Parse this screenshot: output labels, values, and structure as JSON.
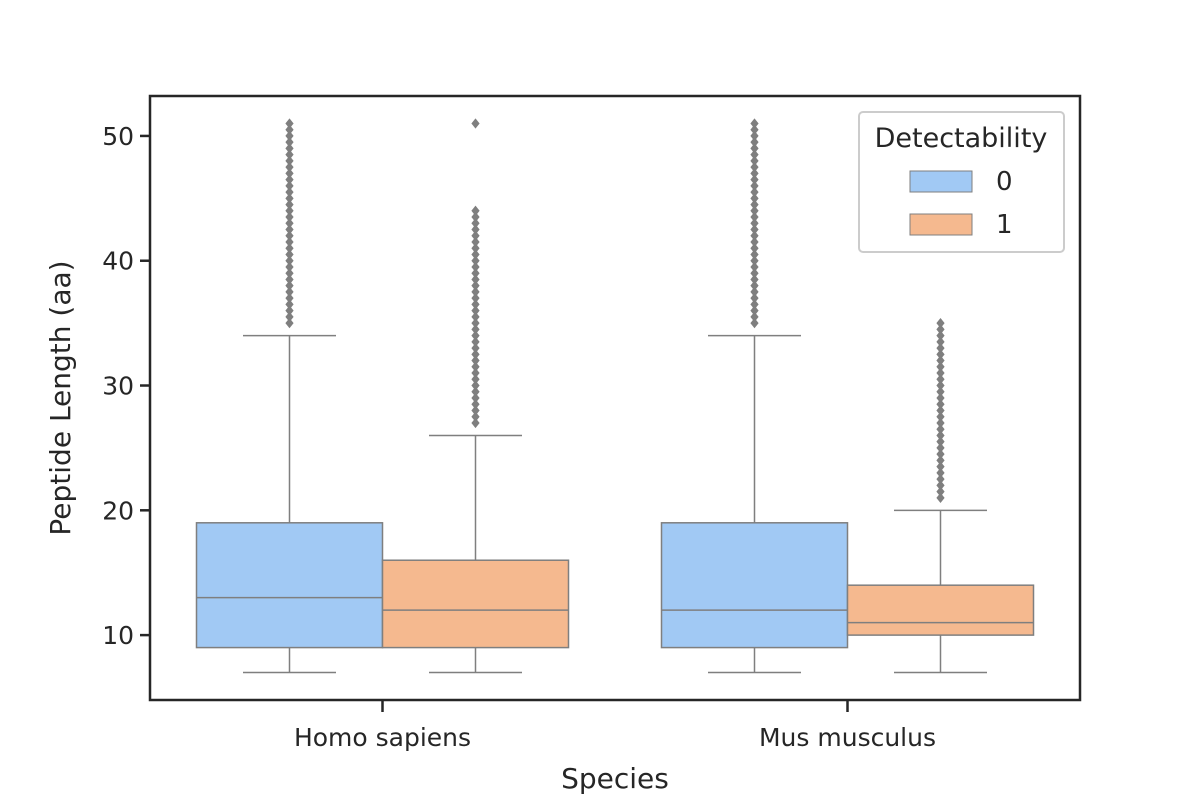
{
  "chart_data": {
    "type": "box",
    "xlabel": "Species",
    "ylabel": "Peptide Length (aa)",
    "ylim": [
      4.8,
      53.2
    ],
    "yticks": [
      10,
      20,
      30,
      40,
      50
    ],
    "categories": [
      "Homo sapiens",
      "Mus musculus"
    ],
    "legend": {
      "title": "Detectability",
      "placement": "top-right"
    },
    "grid": false,
    "series": [
      {
        "name": "0",
        "color": "#a1c9f4",
        "boxes": [
          {
            "category": "Homo sapiens",
            "whisker_low": 7,
            "q1": 9,
            "median": 13,
            "q3": 19,
            "whisker_high": 34,
            "outliers": [
              35,
              35.5,
              36,
              36.5,
              37,
              37.5,
              38,
              38.5,
              39,
              39.5,
              40,
              40.5,
              41,
              41.5,
              42,
              42.5,
              43,
              43.5,
              44,
              44.5,
              45,
              45.5,
              46,
              46.5,
              47,
              47.5,
              48,
              48.5,
              49,
              49.5,
              50,
              50.5,
              51
            ]
          },
          {
            "category": "Mus musculus",
            "whisker_low": 7,
            "q1": 9,
            "median": 12,
            "q3": 19,
            "whisker_high": 34,
            "outliers": [
              35,
              35.5,
              36,
              36.5,
              37,
              37.5,
              38,
              38.5,
              39,
              39.5,
              40,
              40.5,
              41,
              41.5,
              42,
              42.5,
              43,
              43.5,
              44,
              44.5,
              45,
              45.5,
              46,
              46.5,
              47,
              47.5,
              48,
              48.5,
              49,
              49.5,
              50,
              50.5,
              51
            ]
          }
        ]
      },
      {
        "name": "1",
        "color": "#f5b98f",
        "boxes": [
          {
            "category": "Homo sapiens",
            "whisker_low": 7,
            "q1": 9,
            "median": 12,
            "q3": 16,
            "whisker_high": 26,
            "outliers": [
              27,
              27.5,
              28,
              28.5,
              29,
              29.5,
              30,
              30.5,
              31,
              31.5,
              32,
              32.5,
              33,
              33.5,
              34,
              34.5,
              35,
              35.5,
              36,
              36.5,
              37,
              37.5,
              38,
              38.5,
              39,
              39.5,
              40,
              40.5,
              41,
              41.5,
              42,
              42.5,
              43,
              43.5,
              44,
              51
            ]
          },
          {
            "category": "Mus musculus",
            "whisker_low": 7,
            "q1": 10,
            "median": 11,
            "q3": 14,
            "whisker_high": 20,
            "outliers": [
              21,
              21.5,
              22,
              22.5,
              23,
              23.5,
              24,
              24.5,
              25,
              25.5,
              26,
              26.5,
              27,
              27.5,
              28,
              28.5,
              29,
              29.5,
              30,
              30.5,
              31,
              31.5,
              32,
              32.5,
              33,
              33.5,
              34,
              34.5,
              35
            ]
          }
        ]
      }
    ]
  }
}
